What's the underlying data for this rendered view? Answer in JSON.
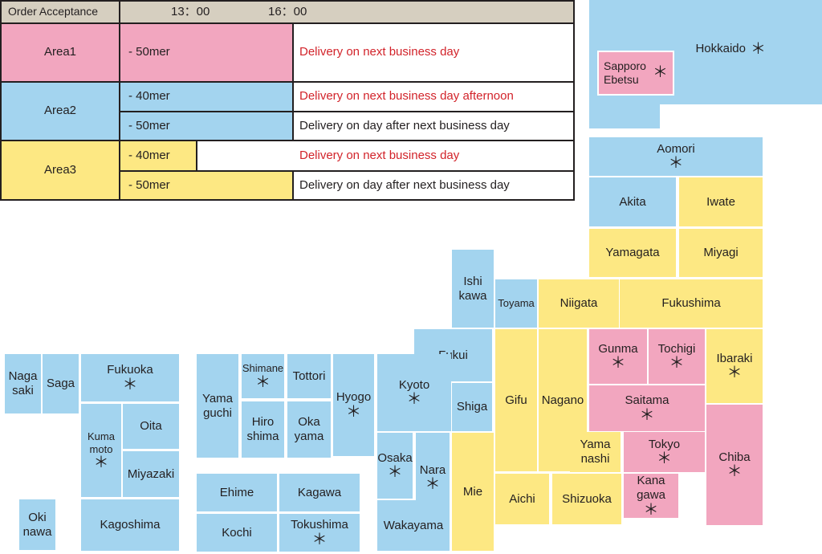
{
  "header": {
    "label": "Order Acceptance",
    "time1": "13：00",
    "time2": "16：00"
  },
  "areas": [
    {
      "name": "Area1",
      "rows": [
        {
          "cutoff": "- 50mer",
          "delivery": "Delivery on next business day"
        }
      ]
    },
    {
      "name": "Area2",
      "rows": [
        {
          "cutoff": "- 40mer",
          "delivery": "Delivery on next business day afternoon"
        },
        {
          "cutoff": "- 50mer",
          "delivery": "Delivery on day after next business day"
        }
      ]
    },
    {
      "name": "Area3",
      "rows": [
        {
          "cutoff": "- 40mer",
          "delivery": "Delivery on next business day"
        },
        {
          "cutoff": "- 50mer",
          "delivery": "Delivery on day after next business day"
        }
      ]
    }
  ],
  "colors": {
    "area1": "#f2a6bf",
    "area2": "#a3d4ef",
    "area3": "#fde883",
    "header": "#d6cfc0",
    "urgent_text": "#d2232a"
  },
  "marker": "＊",
  "sapporo": {
    "name": "Sapporo\nEbetsu",
    "area": "Area1"
  },
  "prefectures": [
    {
      "name": "Hokkaido",
      "area": "Area2",
      "mark": true
    },
    {
      "name": "Aomori",
      "area": "Area2",
      "mark": true
    },
    {
      "name": "Akita",
      "area": "Area2",
      "mark": false
    },
    {
      "name": "Iwate",
      "area": "Area3",
      "mark": false
    },
    {
      "name": "Yamagata",
      "area": "Area3",
      "mark": false
    },
    {
      "name": "Miyagi",
      "area": "Area3",
      "mark": false
    },
    {
      "name": "Fukushima",
      "area": "Area3",
      "mark": false
    },
    {
      "name": "Niigata",
      "area": "Area3",
      "mark": false
    },
    {
      "name": "Toyama",
      "area": "Area2",
      "mark": false
    },
    {
      "name": "Ishi\nkawa",
      "area": "Area2",
      "mark": false
    },
    {
      "name": "Fukui",
      "area": "Area2",
      "mark": false
    },
    {
      "name": "Shiga",
      "area": "Area2",
      "mark": false
    },
    {
      "name": "Kyoto",
      "area": "Area2",
      "mark": true
    },
    {
      "name": "Hyogo",
      "area": "Area2",
      "mark": true
    },
    {
      "name": "Osaka",
      "area": "Area2",
      "mark": true
    },
    {
      "name": "Nara",
      "area": "Area2",
      "mark": true
    },
    {
      "name": "Wakayama",
      "area": "Area2",
      "mark": false
    },
    {
      "name": "Mie",
      "area": "Area3",
      "mark": false
    },
    {
      "name": "Gifu",
      "area": "Area3",
      "mark": false
    },
    {
      "name": "Nagano",
      "area": "Area3",
      "mark": false
    },
    {
      "name": "Aichi",
      "area": "Area3",
      "mark": false
    },
    {
      "name": "Shizuoka",
      "area": "Area3",
      "mark": false
    },
    {
      "name": "Yama\nnashi",
      "area": "Area3",
      "mark": false
    },
    {
      "name": "Gunma",
      "area": "Area1",
      "mark": true
    },
    {
      "name": "Tochigi",
      "area": "Area1",
      "mark": true
    },
    {
      "name": "Ibaraki",
      "area": "Area3",
      "mark": true
    },
    {
      "name": "Saitama",
      "area": "Area1",
      "mark": true
    },
    {
      "name": "Tokyo",
      "area": "Area1",
      "mark": true
    },
    {
      "name": "Kana\ngawa",
      "area": "Area1",
      "mark": true
    },
    {
      "name": "Chiba",
      "area": "Area1",
      "mark": true
    },
    {
      "name": "Tottori",
      "area": "Area2",
      "mark": false
    },
    {
      "name": "Shimane",
      "area": "Area2",
      "mark": true
    },
    {
      "name": "Oka\nyama",
      "area": "Area2",
      "mark": false
    },
    {
      "name": "Hiro\nshima",
      "area": "Area2",
      "mark": false
    },
    {
      "name": "Yama\nguchi",
      "area": "Area2",
      "mark": false
    },
    {
      "name": "Ehime",
      "area": "Area2",
      "mark": false
    },
    {
      "name": "Kagawa",
      "area": "Area2",
      "mark": false
    },
    {
      "name": "Kochi",
      "area": "Area2",
      "mark": false
    },
    {
      "name": "Tokushima",
      "area": "Area2",
      "mark": true
    },
    {
      "name": "Fukuoka",
      "area": "Area2",
      "mark": true
    },
    {
      "name": "Saga",
      "area": "Area2",
      "mark": false
    },
    {
      "name": "Naga\nsaki",
      "area": "Area2",
      "mark": false
    },
    {
      "name": "Oita",
      "area": "Area2",
      "mark": false
    },
    {
      "name": "Kuma\nmoto",
      "area": "Area2",
      "mark": true
    },
    {
      "name": "Miyazaki",
      "area": "Area2",
      "mark": false
    },
    {
      "name": "Kagoshima",
      "area": "Area2",
      "mark": false
    },
    {
      "name": "Oki\nnawa",
      "area": "Area2",
      "mark": false
    }
  ]
}
